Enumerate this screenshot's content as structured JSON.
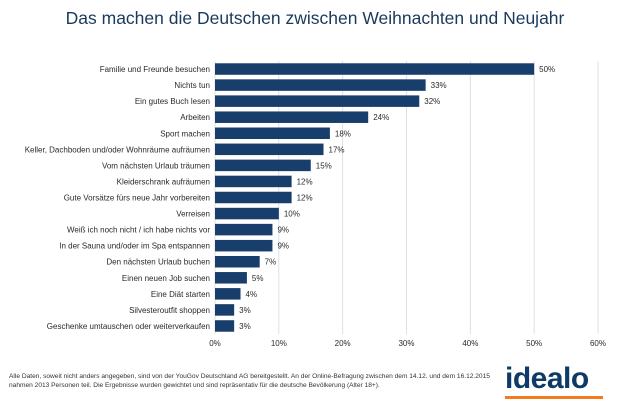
{
  "title": "Das machen die Deutschen zwischen Weihnachten und Neujahr",
  "chart_data": {
    "type": "bar",
    "orientation": "horizontal",
    "categories": [
      "Familie und Freunde besuchen",
      "Nichts tun",
      "Ein gutes Buch lesen",
      "Arbeiten",
      "Sport machen",
      "Keller, Dachboden und/oder Wohnräume aufräumen",
      "Vom nächsten Urlaub träumen",
      "Kleiderschrank aufräumen",
      "Gute Vorsätze fürs neue Jahr vorbereiten",
      "Verreisen",
      "Weiß ich noch nicht / ich habe nichts vor",
      "In der Sauna und/oder im Spa entspannen",
      "Den nächsten Urlaub buchen",
      "Einen neuen Job suchen",
      "Eine Diät starten",
      "Silvesteroutfit shoppen",
      "Geschenke umtauschen oder weiterverkaufen"
    ],
    "values": [
      50,
      33,
      32,
      24,
      18,
      17,
      15,
      12,
      12,
      10,
      9,
      9,
      7,
      5,
      4,
      3,
      3
    ],
    "value_labels": [
      "50%",
      "33%",
      "32%",
      "24%",
      "18%",
      "17%",
      "15%",
      "12%",
      "12%",
      "10%",
      "9%",
      "9%",
      "7%",
      "5%",
      "4%",
      "3%",
      "3%"
    ],
    "xlim": [
      0,
      60
    ],
    "x_ticks": [
      "0%",
      "10%",
      "20%",
      "30%",
      "40%",
      "50%",
      "60%"
    ],
    "grid": true,
    "bar_color": "#183e6b",
    "grid_color": "#d9d9d9"
  },
  "footnote": "Alle Daten, soweit nicht anders angegeben, sind von der YouGov Deutschland AG bereitgestellt. An der Online-Befragung zwischen dem 14.12. und dem 16.12.2015 nahmen 2013 Personen teil. Die Ergebnisse wurden gewichtet und sind repräsentativ für die deutsche Bevölkerung (Alter 18+).",
  "logo": {
    "text": "idealo",
    "bar_color": "#f47c20"
  }
}
